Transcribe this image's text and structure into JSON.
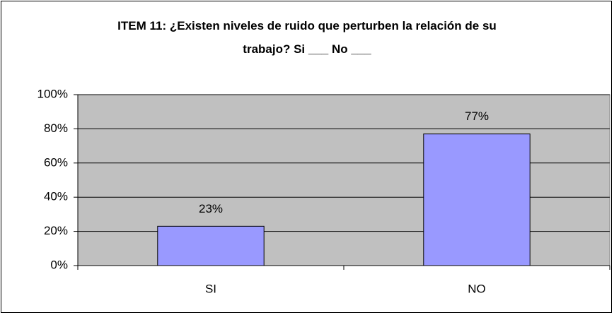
{
  "chart_data": {
    "type": "bar",
    "title": "ITEM 11: ¿Existen niveles de ruido que perturben la relación de su trabajo? Si ___ No ___",
    "categories": [
      "SI",
      "NO"
    ],
    "values": [
      23,
      77
    ],
    "value_labels": [
      "23%",
      "77%"
    ],
    "color": "#9999ff",
    "ylim": [
      0,
      100
    ],
    "yticks": [
      {
        "value": 0,
        "label": "0%"
      },
      {
        "value": 20,
        "label": "20%"
      },
      {
        "value": 40,
        "label": "40%"
      },
      {
        "value": 60,
        "label": "60%"
      },
      {
        "value": 80,
        "label": "80%"
      },
      {
        "value": 100,
        "label": "100%"
      }
    ],
    "grid": true
  }
}
